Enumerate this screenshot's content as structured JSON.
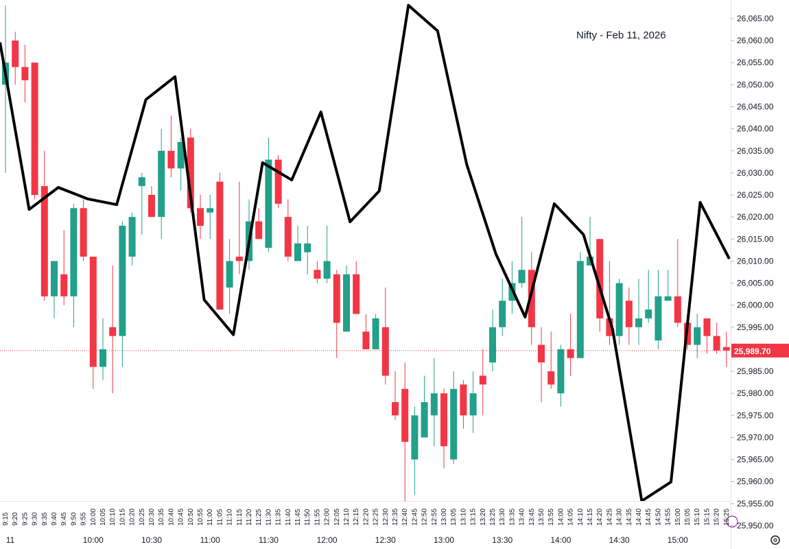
{
  "chart_data": {
    "type": "candlestick",
    "title": "Nifty - Feb 11, 2026",
    "categories": [
      "9:15",
      "9:20",
      "9:25",
      "9:30",
      "9:35",
      "9:40",
      "9:45",
      "9:50",
      "9:55",
      "10:00",
      "10:05",
      "10:10",
      "10:15",
      "10:20",
      "10:25",
      "10:30",
      "10:35",
      "10:40",
      "10:45",
      "10:50",
      "10:55",
      "11:00",
      "11:05",
      "11:10",
      "11:15",
      "11:20",
      "11:25",
      "11:30",
      "11:35",
      "11:40",
      "11:45",
      "11:50",
      "11:55",
      "12:00",
      "12:05",
      "12:10",
      "12:15",
      "12:20",
      "12:25",
      "12:30",
      "12:35",
      "12:40",
      "12:45",
      "12:50",
      "12:55",
      "13:00",
      "13:05",
      "13:10",
      "13:15",
      "13:20",
      "13:25",
      "13:30",
      "13:35",
      "13:40",
      "13:45",
      "13:50",
      "13:55",
      "14:00",
      "14:05",
      "14:10",
      "14:15",
      "14:20",
      "14:25",
      "14:30",
      "14:35",
      "14:40",
      "14:45",
      "14:50",
      "14:55",
      "15:00",
      "15:05",
      "15:10",
      "15:15",
      "15:20",
      "15:25"
    ],
    "open": [
      26050,
      26060,
      26054,
      26055,
      26027,
      26002,
      26007,
      26002,
      26022,
      26011,
      25986,
      25995,
      25993,
      26011,
      26027,
      26025,
      26020,
      26035,
      26031,
      26038,
      26022,
      26021,
      26028,
      26004,
      26011,
      26010,
      26019,
      26013,
      26033,
      26020,
      26010,
      26012,
      26008,
      26006,
      26007,
      25994,
      26007,
      25994,
      25990,
      25995,
      25978,
      25981,
      25965,
      25970,
      25975,
      25980,
      25965,
      25982,
      25975,
      25984,
      25987,
      25995,
      26001,
      26005,
      26008,
      25991,
      25985,
      25980,
      25990,
      25988,
      26009,
      26015,
      25997,
      25993,
      26001,
      25995,
      25997,
      25992,
      26001,
      26002,
      25996,
      25991,
      25997,
      25993,
      25990.5
    ],
    "high": [
      26068,
      26062,
      26059,
      26055,
      26035,
      26010,
      26017,
      26023,
      26024,
      26011,
      25997,
      26009,
      26019,
      26021,
      26030,
      26027,
      26040,
      26043,
      26038,
      26040,
      26025,
      26025,
      26030,
      26015,
      26028,
      26024,
      26022,
      26038,
      26034,
      26024,
      26018,
      26018,
      26010,
      26018,
      26008,
      26009,
      26010,
      25998,
      25998,
      26004,
      25985,
      25987,
      25977,
      25984,
      25988,
      25981,
      25985,
      25983,
      25985,
      25990,
      25999,
      26006,
      26010,
      26020,
      26012,
      25995,
      25994,
      25991,
      25998,
      26012,
      26020,
      26015,
      26010,
      26006,
      26004,
      26006,
      26008,
      26008,
      26008,
      26015,
      25998,
      25998,
      25997,
      25996,
      25994
    ],
    "low": [
      26030,
      26050,
      26046,
      26024,
      26001,
      25997,
      26000,
      25995,
      26010,
      25981,
      25983,
      25980,
      25986,
      26009,
      26016,
      26020,
      26015,
      26029,
      26026,
      26021,
      26015,
      26015,
      25999,
      25998,
      26007,
      26008,
      26015,
      26012,
      26022,
      26010,
      26010,
      26007,
      26005,
      26005,
      25988,
      25994,
      25998,
      25990,
      25990,
      25982,
      25974,
      25955,
      25957,
      25970,
      25968,
      25963,
      25964,
      25972,
      25971,
      25975,
      25985,
      25993,
      25998,
      26004,
      25991,
      25978,
      25981,
      25977,
      25984,
      25988,
      26010,
      25994,
      25991,
      25991,
      25991,
      25991,
      25996,
      25990,
      26001,
      25995,
      25990,
      25988,
      25989,
      25989,
      25986
    ],
    "close": [
      26055,
      26054,
      26051,
      26025,
      26002,
      26010,
      26002,
      26022,
      26011,
      25986,
      25990,
      25993,
      26018,
      26020,
      26029,
      26020,
      26035,
      26031,
      26037,
      26022,
      26018,
      26022,
      25999,
      26010,
      26010,
      26019,
      26015,
      26033,
      26023,
      26011,
      26014,
      26014,
      26006,
      26010,
      25996,
      26007,
      25998,
      25990,
      25997,
      25984,
      25975,
      25969,
      25975,
      25978,
      25980,
      25968,
      25981,
      25975,
      25980,
      25982,
      25995,
      26001,
      26005,
      26008,
      25995,
      25987,
      25982,
      25990,
      25988,
      26010,
      26011,
      25997,
      25993,
      26005,
      25995,
      25997,
      25999,
      26002,
      26002,
      25996,
      25991,
      25995,
      25993,
      25989.7,
      25989.7
    ],
    "up_color": "#22a08a",
    "down_color": "#f23645",
    "line": {
      "color": "#000000",
      "values": [
        26059.6,
        26021.7,
        26026.7,
        26024.1,
        26022.8,
        26046.6,
        26051.8,
        26001.2,
        25993.3,
        26032.3,
        26028.4,
        26043.8,
        26018.9,
        26025.9,
        26068.0,
        26062.2,
        26031.9,
        26011.6,
        25997.3,
        26023.0,
        26016.0,
        25994.5,
        25955.6,
        25959.9,
        26023.3,
        26010.5
      ]
    },
    "last": {
      "value": 25989.7,
      "label": "25,989.70"
    },
    "time_labels": [
      "11",
      "10:00",
      "10:30",
      "11:00",
      "11:30",
      "12:00",
      "12:30",
      "13:00",
      "13:30",
      "14:00",
      "14:30",
      "15:00"
    ],
    "ylim": [
      25944.7,
      26069.2
    ],
    "yticks": [
      {
        "value": 25950,
        "label": "25,950.00"
      },
      {
        "value": 25955,
        "label": "25,955.00"
      },
      {
        "value": 25960,
        "label": "25,960.00"
      },
      {
        "value": 25965,
        "label": "25,965.00"
      },
      {
        "value": 25970,
        "label": "25,970.00"
      },
      {
        "value": 25975,
        "label": "25,975.00"
      },
      {
        "value": 25980,
        "label": "25,980.00"
      },
      {
        "value": 25985,
        "label": "25,985.00"
      },
      {
        "value": 25990,
        "label": "25,990.00"
      },
      {
        "value": 25995,
        "label": "25,995.00"
      },
      {
        "value": 26000,
        "label": "26,000.00"
      },
      {
        "value": 26005,
        "label": "26,005.00"
      },
      {
        "value": 26010,
        "label": "26,010.00"
      },
      {
        "value": 26015,
        "label": "26,015.00"
      },
      {
        "value": 26020,
        "label": "26,020.00"
      },
      {
        "value": 26025,
        "label": "26,025.00"
      },
      {
        "value": 26030,
        "label": "26,030.00"
      },
      {
        "value": 26035,
        "label": "26,035.00"
      },
      {
        "value": 26040,
        "label": "26,040.00"
      },
      {
        "value": 26045,
        "label": "26,045.00"
      },
      {
        "value": 26050,
        "label": "26,050.00"
      },
      {
        "value": 26055,
        "label": "26,055.00"
      },
      {
        "value": 26060,
        "label": "26,060.00"
      },
      {
        "value": 26065,
        "label": "26,065.00"
      }
    ]
  }
}
